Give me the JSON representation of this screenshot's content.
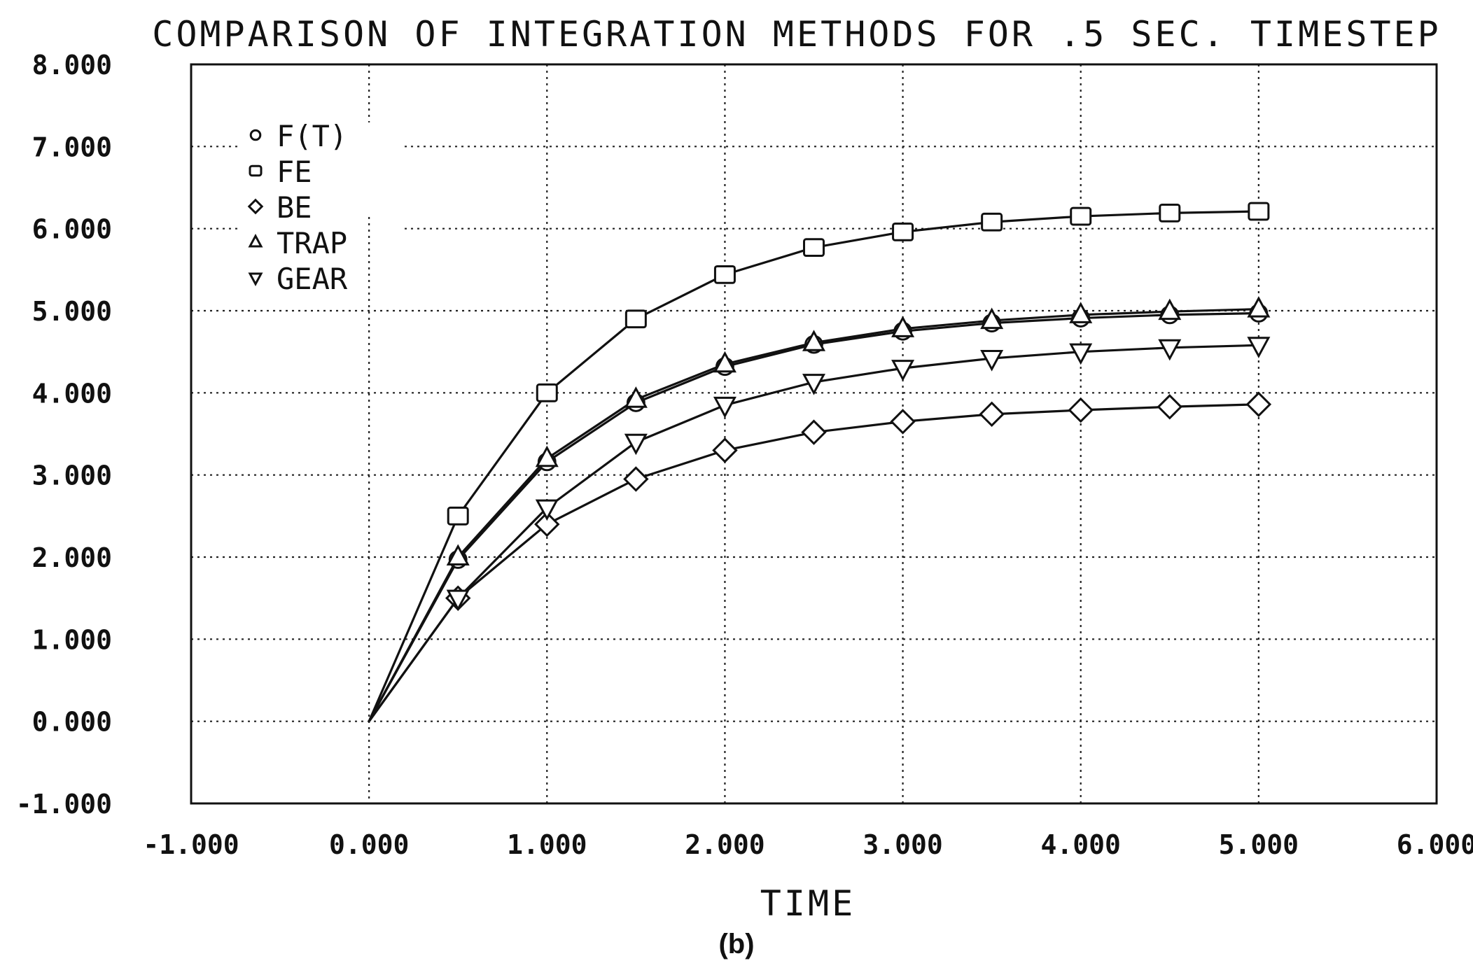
{
  "caption": "(b)",
  "chart_data": {
    "type": "line",
    "title": "COMPARISON OF INTEGRATION METHODS FOR .5 SEC. TIMESTEP",
    "xlabel": "TIME",
    "ylabel": "",
    "xlim": [
      -1,
      6
    ],
    "ylim": [
      -1,
      8
    ],
    "x_ticks": [
      -1,
      0,
      1,
      2,
      3,
      4,
      5,
      6
    ],
    "y_ticks": [
      -1,
      0,
      1,
      2,
      3,
      4,
      5,
      6,
      7,
      8
    ],
    "x_tick_labels": [
      "-1.000",
      "0.000",
      "1.000",
      "2.000",
      "3.000",
      "4.000",
      "5.000",
      "6.000"
    ],
    "y_tick_labels": [
      "-1.000",
      "0.000",
      "1.000",
      "2.000",
      "3.000",
      "4.000",
      "5.000",
      "6.000",
      "7.000",
      "8.000"
    ],
    "grid": true,
    "legend_position": "top-left",
    "x": [
      0,
      0.5,
      1.0,
      1.5,
      2.0,
      2.5,
      3.0,
      3.5,
      4.0,
      4.5,
      5.0
    ],
    "series": [
      {
        "name": "F(T)",
        "marker": "circle",
        "values": [
          0,
          1.97,
          3.16,
          3.88,
          4.32,
          4.59,
          4.75,
          4.85,
          4.91,
          4.95,
          4.97
        ]
      },
      {
        "name": "FE",
        "marker": "square",
        "values": [
          0,
          2.5,
          4.0,
          4.9,
          5.44,
          5.77,
          5.96,
          6.08,
          6.15,
          6.19,
          6.21
        ]
      },
      {
        "name": "BE",
        "marker": "diamond",
        "values": [
          0,
          1.5,
          2.4,
          2.95,
          3.3,
          3.52,
          3.65,
          3.74,
          3.79,
          3.83,
          3.86
        ]
      },
      {
        "name": "TRAP",
        "marker": "triangle-up",
        "values": [
          0,
          2.0,
          3.2,
          3.92,
          4.35,
          4.61,
          4.78,
          4.88,
          4.95,
          4.99,
          5.02
        ]
      },
      {
        "name": "GEAR",
        "marker": "triangle-down",
        "values": [
          0,
          1.5,
          2.6,
          3.4,
          3.85,
          4.13,
          4.3,
          4.42,
          4.5,
          4.55,
          4.58
        ]
      }
    ]
  }
}
